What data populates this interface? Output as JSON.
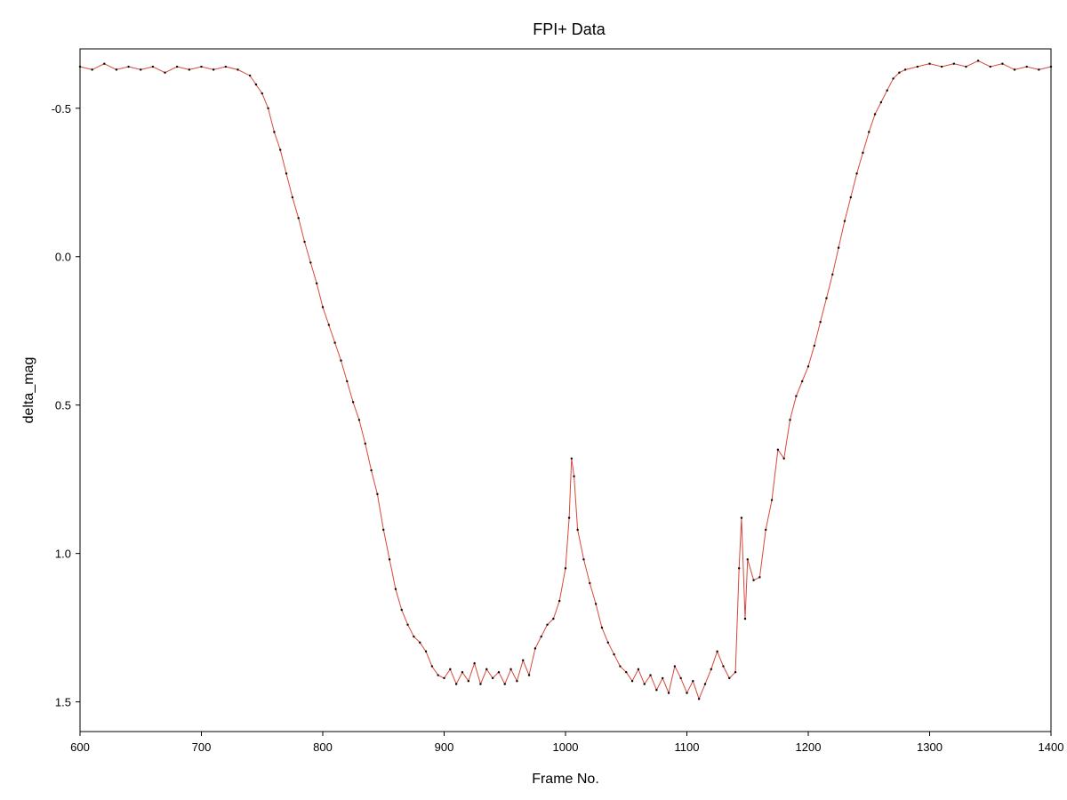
{
  "chart_data": {
    "type": "line",
    "title": "FPI+ Data",
    "xlabel": "Frame No.",
    "ylabel": "delta_mag",
    "xlim": [
      600,
      1400
    ],
    "ylim": [
      -0.7,
      1.6
    ],
    "y_inverted": true,
    "grid": false,
    "x_ticks": [
      600,
      700,
      800,
      900,
      1000,
      1100,
      1200,
      1300,
      1400
    ],
    "y_ticks": [
      -0.5,
      0.0,
      0.5,
      1.0,
      1.5
    ],
    "x_tick_labels": [
      "600",
      "700",
      "800",
      "900",
      "1000",
      "1100",
      "1200",
      "1300",
      "1400"
    ],
    "y_tick_labels": [
      "-0.5",
      "0.0",
      "0.5",
      "1.0",
      "1.5"
    ],
    "colors": {
      "line": "#d9473a",
      "marker": "#000000",
      "axis": "#000000"
    },
    "series": [
      {
        "x": [
          600,
          610,
          620,
          630,
          640,
          650,
          660,
          670,
          680,
          690,
          700,
          710,
          720,
          730,
          740,
          745,
          750,
          755,
          760,
          765,
          770,
          775,
          780,
          785,
          790,
          795,
          800,
          805,
          810,
          815,
          820,
          825,
          830,
          835,
          840,
          845,
          850,
          855,
          860,
          865,
          870,
          875,
          880,
          885,
          890,
          895,
          900,
          905,
          910,
          915,
          920,
          925,
          930,
          935,
          940,
          945,
          950,
          955,
          960,
          965,
          970,
          975,
          980,
          985,
          990,
          995,
          1000,
          1003,
          1005,
          1007,
          1010,
          1015,
          1020,
          1025,
          1030,
          1035,
          1040,
          1045,
          1050,
          1055,
          1060,
          1065,
          1070,
          1075,
          1080,
          1085,
          1090,
          1095,
          1100,
          1105,
          1110,
          1115,
          1120,
          1125,
          1130,
          1135,
          1140,
          1143,
          1145,
          1148,
          1150,
          1155,
          1160,
          1165,
          1170,
          1175,
          1180,
          1185,
          1190,
          1195,
          1200,
          1205,
          1210,
          1215,
          1220,
          1225,
          1230,
          1235,
          1240,
          1245,
          1250,
          1255,
          1260,
          1265,
          1270,
          1275,
          1280,
          1290,
          1300,
          1310,
          1320,
          1330,
          1340,
          1350,
          1360,
          1370,
          1380,
          1390,
          1400
        ],
        "y": [
          -0.64,
          -0.63,
          -0.65,
          -0.63,
          -0.64,
          -0.63,
          -0.64,
          -0.62,
          -0.64,
          -0.63,
          -0.64,
          -0.63,
          -0.64,
          -0.63,
          -0.61,
          -0.58,
          -0.55,
          -0.5,
          -0.42,
          -0.36,
          -0.28,
          -0.2,
          -0.13,
          -0.05,
          0.02,
          0.09,
          0.17,
          0.23,
          0.29,
          0.35,
          0.42,
          0.49,
          0.55,
          0.63,
          0.72,
          0.8,
          0.92,
          1.02,
          1.12,
          1.19,
          1.24,
          1.28,
          1.3,
          1.33,
          1.38,
          1.41,
          1.42,
          1.39,
          1.44,
          1.4,
          1.43,
          1.37,
          1.44,
          1.39,
          1.42,
          1.4,
          1.44,
          1.39,
          1.43,
          1.36,
          1.41,
          1.32,
          1.28,
          1.24,
          1.22,
          1.16,
          1.05,
          0.88,
          0.68,
          0.74,
          0.92,
          1.02,
          1.1,
          1.17,
          1.25,
          1.3,
          1.34,
          1.38,
          1.4,
          1.43,
          1.39,
          1.44,
          1.41,
          1.46,
          1.42,
          1.47,
          1.38,
          1.42,
          1.47,
          1.43,
          1.49,
          1.44,
          1.39,
          1.33,
          1.38,
          1.42,
          1.4,
          1.05,
          0.88,
          1.22,
          1.02,
          1.09,
          1.08,
          0.92,
          0.82,
          0.65,
          0.68,
          0.55,
          0.47,
          0.42,
          0.37,
          0.3,
          0.22,
          0.14,
          0.06,
          -0.03,
          -0.12,
          -0.2,
          -0.28,
          -0.35,
          -0.42,
          -0.48,
          -0.52,
          -0.56,
          -0.6,
          -0.62,
          -0.63,
          -0.64,
          -0.65,
          -0.64,
          -0.65,
          -0.64,
          -0.66,
          -0.64,
          -0.65,
          -0.63,
          -0.64,
          -0.63,
          -0.64
        ]
      }
    ]
  }
}
